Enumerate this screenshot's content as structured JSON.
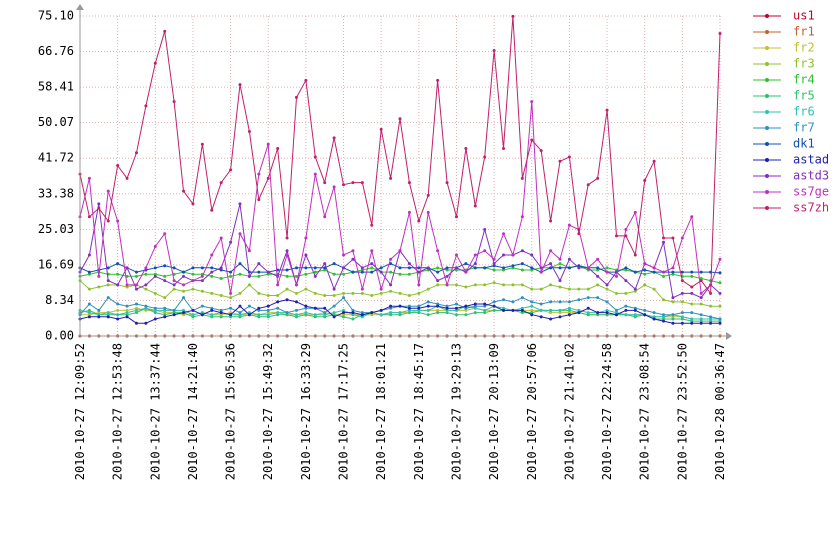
{
  "chart_data": {
    "type": "line",
    "grid": true,
    "legend": "right",
    "ylim": [
      0,
      75.1
    ],
    "yticks": [
      {
        "value": 0,
        "label": "0.00"
      },
      8.34,
      16.69,
      25.03,
      33.38,
      41.72,
      50.07,
      58.41,
      66.76,
      {
        "value": 75.1,
        "label": "75.10"
      }
    ],
    "categories": [
      "2010-10-27 12:09:52",
      null,
      null,
      null,
      "2010-10-27 12:53:48",
      null,
      null,
      null,
      "2010-10-27 13:37:44",
      null,
      null,
      null,
      "2010-10-27 14:21:40",
      null,
      null,
      null,
      "2010-10-27 15:05:36",
      null,
      null,
      null,
      "2010-10-27 15:49:32",
      null,
      null,
      null,
      "2010-10-27 16:33:29",
      null,
      null,
      null,
      "2010-10-27 17:17:25",
      null,
      null,
      null,
      "2010-10-27 18:01:21",
      null,
      null,
      null,
      "2010-10-27 18:45:17",
      null,
      null,
      null,
      "2010-10-27 19:29:13",
      null,
      null,
      null,
      "2010-10-27 20:13:09",
      null,
      null,
      null,
      "2010-10-27 20:57:06",
      null,
      null,
      null,
      "2010-10-27 21:41:02",
      null,
      null,
      null,
      "2010-10-27 22:24:58",
      null,
      null,
      null,
      "2010-10-27 23:08:54",
      null,
      null,
      null,
      "2010-10-27 23:52:50",
      null,
      null,
      null,
      "2010-10-28 00:36:47"
    ],
    "series": [
      {
        "name": "us1",
        "color": "#c00030",
        "values": [
          0,
          0,
          0,
          0,
          0,
          0,
          0,
          0,
          0,
          0,
          0,
          0,
          0,
          0,
          0,
          0,
          0,
          0,
          0,
          0,
          0,
          0,
          0,
          0,
          0,
          0,
          0,
          0,
          0,
          0,
          0,
          0,
          0,
          0,
          0,
          0,
          0,
          0,
          0,
          0,
          0,
          0,
          0,
          0,
          0,
          0,
          0,
          0,
          0,
          0,
          0,
          0,
          0,
          0,
          0,
          0,
          0,
          0,
          0,
          0,
          0,
          0,
          0,
          0,
          0,
          0,
          0,
          0,
          0
        ]
      },
      {
        "name": "fr1",
        "color": "#c06030",
        "values": [
          0,
          0,
          0,
          0,
          0,
          0,
          0,
          0,
          0,
          0,
          0,
          0,
          0,
          0,
          0,
          0,
          0,
          0,
          0,
          0,
          0,
          0,
          0,
          0,
          0,
          0,
          0,
          0,
          0,
          0,
          0,
          0,
          0,
          0,
          0,
          0,
          0,
          0,
          0,
          0,
          0,
          0,
          0,
          0,
          0,
          0,
          0,
          0,
          0,
          0,
          0,
          0,
          0,
          0,
          0,
          0,
          0,
          0,
          0,
          0,
          0,
          0,
          0,
          0,
          0,
          0,
          0,
          0,
          0
        ]
      },
      {
        "name": "fr2",
        "color": "#c0c030",
        "values": [
          5,
          5,
          5.5,
          5.5,
          6,
          6,
          6.5,
          6,
          6,
          5.5,
          5.5,
          5,
          5,
          5.5,
          5,
          5,
          5.5,
          5,
          5,
          5,
          5.5,
          5.5,
          5,
          5,
          5,
          5,
          5.5,
          5,
          5,
          5,
          5,
          5,
          5,
          5.5,
          5.5,
          5.5,
          6,
          6,
          6,
          6,
          6,
          6,
          6.5,
          6,
          6,
          6,
          6,
          6,
          6,
          6,
          5.5,
          5.5,
          5.5,
          5.5,
          5,
          5,
          5,
          5,
          5,
          5,
          5,
          4.5,
          4.5,
          4.5,
          4.5,
          4,
          4,
          4,
          4
        ]
      },
      {
        "name": "fr3",
        "color": "#90c030",
        "values": [
          13,
          11,
          11.5,
          12,
          12,
          11.5,
          12,
          11,
          10,
          9,
          11,
          10.5,
          11,
          10.5,
          10,
          9.5,
          9,
          10,
          12,
          10,
          9.5,
          9.5,
          11,
          10,
          11,
          10,
          9.5,
          9.5,
          10,
          10,
          10,
          9.5,
          10,
          10.5,
          10,
          9.5,
          10,
          11,
          12,
          12,
          12,
          11.5,
          12,
          12,
          12.5,
          12,
          12,
          12,
          11,
          11,
          12,
          11.5,
          11,
          11,
          11,
          12,
          11,
          10,
          10,
          10.5,
          12,
          11,
          8.5,
          8,
          8,
          7.5,
          7.5,
          7,
          7
        ]
      },
      {
        "name": "fr4",
        "color": "#30c030",
        "values": [
          14,
          14.5,
          15,
          14.5,
          14.5,
          14,
          14,
          14.5,
          14.5,
          14,
          14.5,
          15,
          14.5,
          14.5,
          14,
          13.5,
          14,
          14.5,
          14,
          14,
          14.5,
          14.5,
          14,
          14,
          14.5,
          15,
          15.5,
          14.5,
          14.5,
          15,
          15.5,
          16,
          15,
          15,
          14.5,
          14.5,
          15,
          15.5,
          16,
          15.5,
          15.5,
          15.5,
          16,
          16,
          15.5,
          15.5,
          16,
          15.5,
          15.5,
          16,
          16,
          17,
          16,
          16.5,
          15.5,
          15.5,
          16,
          15.5,
          15.5,
          15,
          14.5,
          15,
          14,
          14.5,
          14,
          14,
          13.5,
          13,
          12.5
        ]
      },
      {
        "name": "fr5",
        "color": "#30c070",
        "values": [
          5.5,
          6,
          5,
          5,
          5,
          5,
          5.5,
          6.5,
          5.5,
          5,
          5.5,
          5.5,
          4.5,
          5,
          4.5,
          4.5,
          4.5,
          4.5,
          5,
          4.5,
          4.5,
          5,
          5,
          4.5,
          5,
          4.5,
          4.5,
          5,
          4.5,
          4,
          5,
          5.5,
          5,
          5,
          5,
          5.5,
          5.5,
          5,
          5.5,
          5.5,
          5,
          5,
          5.5,
          5.5,
          6,
          6,
          6,
          5.5,
          5.5,
          6,
          6,
          6,
          6,
          5.5,
          5,
          5,
          5,
          5,
          5,
          4.5,
          5,
          4,
          4,
          4,
          4,
          3.5,
          3.5,
          3.5,
          3.5
        ]
      },
      {
        "name": "fr6",
        "color": "#30c0b0",
        "values": [
          6,
          5.5,
          5,
          5.5,
          5,
          5.5,
          6,
          6.5,
          6,
          6,
          6,
          6,
          5,
          5.5,
          5,
          5.5,
          5,
          5,
          5.5,
          5,
          5,
          5.5,
          5.5,
          5,
          5.5,
          5,
          5,
          5.5,
          6,
          5,
          4.5,
          5.5,
          5,
          5.5,
          5.5,
          6,
          6,
          6,
          7,
          6,
          6,
          7,
          6.5,
          6,
          7,
          6.5,
          6,
          6.5,
          7,
          6,
          6,
          6,
          6.5,
          6,
          5.5,
          5.5,
          6,
          5.5,
          5,
          5,
          5,
          4.5,
          4.5,
          5,
          4.5,
          4,
          4,
          4,
          4
        ]
      },
      {
        "name": "fr7",
        "color": "#3090c0",
        "values": [
          5,
          7.5,
          6,
          9,
          7.5,
          7,
          7.5,
          7,
          6.5,
          6.5,
          6,
          9,
          6,
          7,
          6.5,
          6,
          6.5,
          5.5,
          7,
          6,
          6,
          6.5,
          5.5,
          6,
          6.5,
          6.5,
          5.5,
          7,
          9,
          6,
          5.5,
          5.5,
          6,
          6.5,
          7,
          7,
          7,
          8,
          7.5,
          7,
          7.5,
          6.5,
          7,
          7,
          8,
          8.5,
          8,
          9,
          8,
          7.5,
          8,
          8,
          8,
          8.5,
          9,
          9,
          8,
          6,
          7,
          6.5,
          6,
          5.5,
          5,
          5,
          5.5,
          5.5,
          5,
          4.5,
          4
        ]
      },
      {
        "name": "dk1",
        "color": "#1050b0",
        "values": [
          16,
          15,
          15.5,
          16,
          17,
          16,
          15,
          15.5,
          16,
          16.5,
          16,
          15,
          16,
          16,
          16,
          15.5,
          15,
          17,
          15,
          15,
          15,
          15.5,
          15.5,
          16,
          16,
          16,
          16,
          17,
          16,
          15,
          15,
          15,
          16,
          17,
          16,
          16,
          16,
          16,
          15,
          16,
          16,
          17,
          16,
          16,
          16.5,
          16,
          16.5,
          17,
          16,
          15,
          16,
          16,
          16,
          16.5,
          16,
          16,
          15,
          15,
          16,
          15,
          15.5,
          15,
          15,
          15,
          15,
          15,
          15,
          15,
          14.8
        ]
      },
      {
        "name": "astad",
        "color": "#2020b0",
        "values": [
          4,
          4.5,
          4.5,
          4.5,
          4,
          4.5,
          3,
          3,
          4,
          4.5,
          5,
          5.5,
          6,
          5,
          6,
          5.5,
          5,
          7,
          5,
          6.5,
          7,
          8,
          8.5,
          8,
          7,
          6.5,
          6.5,
          4.5,
          5.5,
          5.5,
          5,
          5.5,
          6,
          7,
          7,
          6.5,
          6.5,
          7,
          7,
          6.5,
          6.5,
          7,
          7.5,
          7.5,
          7,
          6,
          6,
          6,
          5,
          4.5,
          4,
          4.5,
          5,
          5.5,
          6.5,
          5.5,
          5.5,
          5,
          6,
          6,
          5,
          4,
          3.5,
          3,
          3,
          3,
          3,
          3,
          3
        ]
      },
      {
        "name": "astd3",
        "color": "#8030c0",
        "values": [
          15,
          19,
          31,
          13,
          12,
          16,
          11,
          12,
          14,
          13,
          12,
          14,
          13,
          13,
          15,
          16,
          22,
          31,
          14,
          17,
          15,
          14,
          20,
          12,
          19,
          14,
          17,
          11,
          16,
          18,
          16,
          17,
          15,
          12,
          20,
          17,
          15,
          16,
          13,
          14,
          16,
          15,
          17,
          25,
          17,
          19,
          19,
          20,
          19,
          16,
          17,
          13,
          18,
          16,
          16,
          14,
          12,
          15,
          13,
          11,
          17,
          16,
          22,
          9,
          10,
          10,
          9,
          12,
          10
        ]
      },
      {
        "name": "ss7ge",
        "color": "#c030c0",
        "values": [
          28,
          37,
          14,
          34,
          27,
          12,
          12,
          16,
          21,
          24,
          13,
          12,
          13,
          14,
          19,
          23,
          10,
          24,
          20,
          38,
          45,
          12,
          19,
          12,
          23,
          38,
          28,
          35,
          19,
          20,
          11,
          20,
          11,
          18,
          20,
          29,
          12,
          29,
          20,
          12,
          19,
          15,
          19,
          20,
          18,
          24,
          19,
          28,
          55,
          15,
          20,
          18,
          26,
          25,
          16,
          18,
          15,
          14,
          25,
          29,
          17,
          16,
          15,
          16,
          23,
          28,
          10,
          12,
          18
        ]
      },
      {
        "name": "ss7zh",
        "color": "#c0206a",
        "values": [
          38,
          28,
          30,
          27,
          40,
          37,
          43,
          54,
          64,
          71.5,
          55,
          34,
          31,
          45,
          29.5,
          36,
          39,
          59,
          48,
          32,
          37,
          44,
          23,
          56,
          60,
          42,
          36,
          46.5,
          35.5,
          36,
          36,
          26,
          48.5,
          37,
          51,
          36,
          27,
          33,
          60,
          36,
          28,
          44,
          30.5,
          42,
          67,
          44,
          75,
          37,
          46,
          43.5,
          27,
          41,
          42,
          24,
          35.5,
          37,
          53,
          23.5,
          23.5,
          19,
          36.5,
          41,
          23,
          23,
          13,
          11.5,
          13,
          10,
          71
        ]
      }
    ]
  }
}
